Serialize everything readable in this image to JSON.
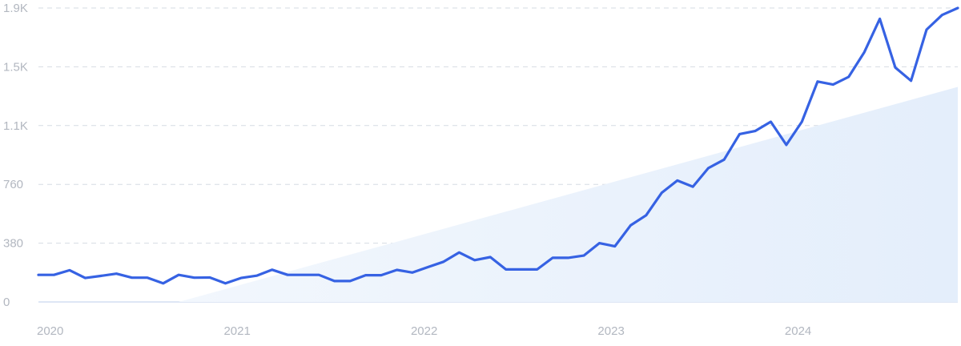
{
  "chart_data": {
    "type": "line",
    "title": "",
    "xlabel": "",
    "ylabel": "",
    "grid": true,
    "y_ticks": [
      "0",
      "380",
      "760",
      "1.1K",
      "1.5K",
      "1.9K"
    ],
    "y_tick_values": [
      0,
      380,
      760,
      1140,
      1520,
      1900
    ],
    "ylim": [
      0,
      1900
    ],
    "x_ticks": [
      "2020",
      "2021",
      "2022",
      "2023",
      "2024"
    ],
    "x_tick_values": [
      2020.0,
      2021.0,
      2022.0,
      2023.0,
      2024.0
    ],
    "xlim": [
      2020.0,
      2024.917
    ],
    "series": [
      {
        "color": "#3662e3",
        "x": [
          2020.0,
          2020.083,
          2020.167,
          2020.25,
          2020.333,
          2020.417,
          2020.5,
          2020.583,
          2020.667,
          2020.75,
          2020.833,
          2020.917,
          2021.0,
          2021.083,
          2021.167,
          2021.25,
          2021.333,
          2021.417,
          2021.5,
          2021.583,
          2021.667,
          2021.75,
          2021.833,
          2021.917,
          2022.0,
          2022.083,
          2022.167,
          2022.25,
          2022.333,
          2022.417,
          2022.5,
          2022.583,
          2022.667,
          2022.75,
          2022.833,
          2022.917,
          2023.0,
          2023.083,
          2023.167,
          2023.25,
          2023.333,
          2023.417,
          2023.5,
          2023.583,
          2023.667,
          2023.75,
          2023.833,
          2023.917,
          2024.0,
          2024.083,
          2024.167,
          2024.25,
          2024.333,
          2024.417,
          2024.5,
          2024.583,
          2024.667,
          2024.75,
          2024.833,
          2024.917
        ],
        "y": [
          175,
          175,
          205,
          155,
          168,
          183,
          157,
          157,
          120,
          175,
          157,
          158,
          120,
          155,
          170,
          208,
          175,
          175,
          175,
          135,
          135,
          173,
          173,
          207,
          190,
          225,
          260,
          320,
          270,
          290,
          210,
          210,
          210,
          285,
          285,
          300,
          380,
          360,
          495,
          560,
          705,
          785,
          745,
          865,
          920,
          1085,
          1105,
          1165,
          1015,
          1165,
          1425,
          1405,
          1455,
          1615,
          1830,
          1515,
          1430,
          1760,
          1855,
          1900
        ]
      },
      {
        "type": "area",
        "color": "#e9f1fc",
        "x": [
          2020.75,
          2024.917
        ],
        "y": [
          0,
          1390
        ]
      }
    ]
  }
}
